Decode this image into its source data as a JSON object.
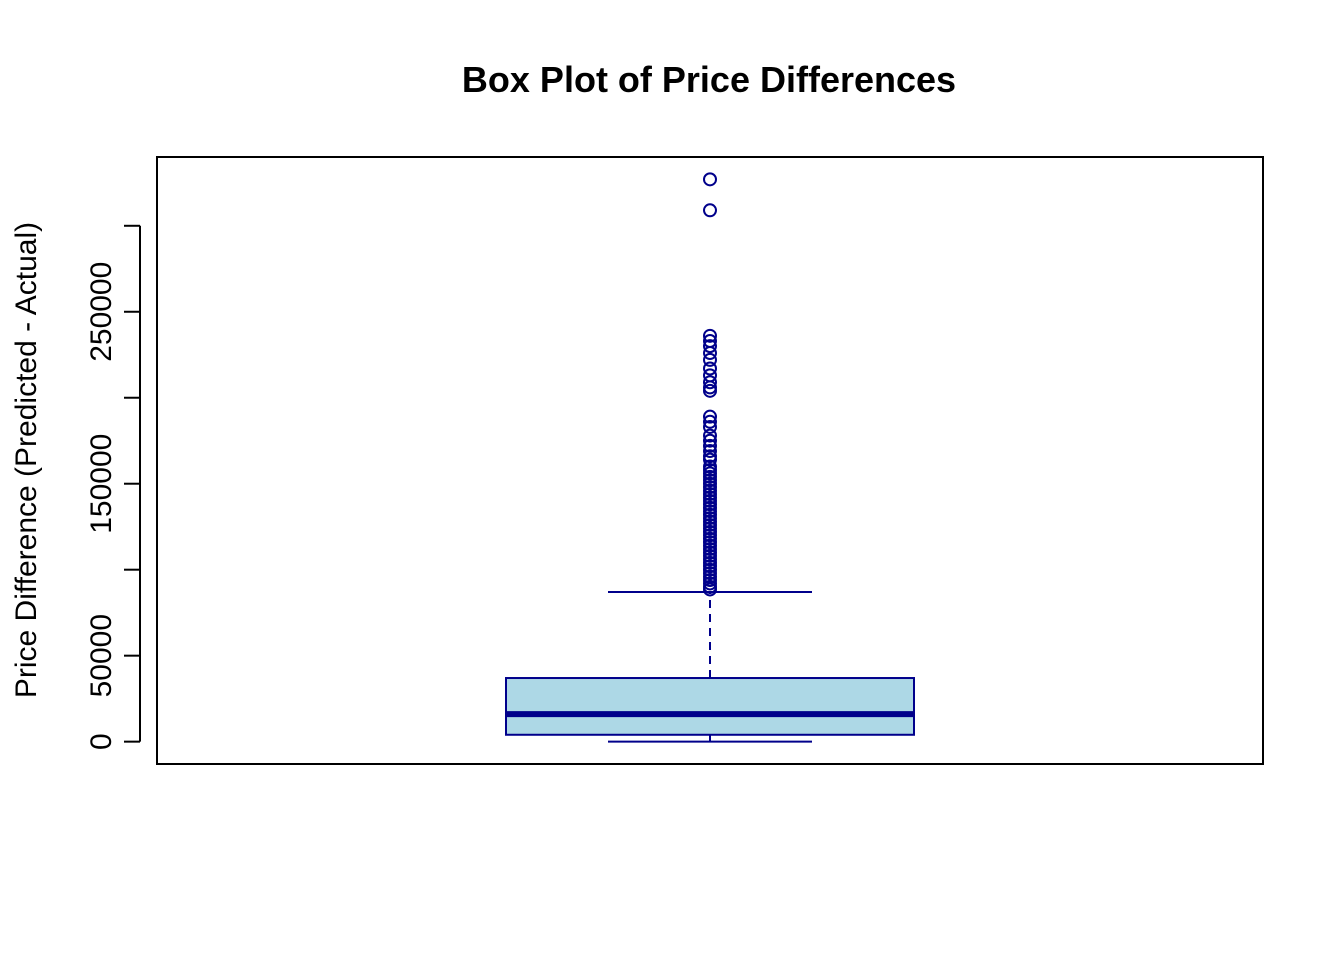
{
  "chart_data": {
    "type": "box",
    "title": "Box Plot of Price Differences",
    "xlabel": "",
    "ylabel": "Price Difference (Predicted - Actual)",
    "ylim": [
      -13000,
      340000
    ],
    "yticks": [
      0,
      50000,
      100000,
      150000,
      200000,
      250000,
      300000
    ],
    "ytick_labels": [
      "0",
      "50000",
      "",
      "150000",
      "",
      "250000",
      ""
    ],
    "box": {
      "whisker_low": 0,
      "q1": 4000,
      "median": 16000,
      "q3": 37000,
      "whisker_high": 87000
    },
    "outliers": [
      327000,
      309000,
      236000,
      233000,
      230000,
      226000,
      222000,
      217000,
      213000,
      209000,
      206000,
      204000,
      189000,
      186000,
      183000,
      178000,
      175000,
      172000,
      169000,
      166000,
      164000,
      160000,
      158000,
      156000,
      154000,
      152000,
      150000,
      148000,
      146000,
      144000,
      142000,
      140000,
      138000,
      136000,
      134000,
      132000,
      130000,
      128000,
      126000,
      124000,
      122000,
      120000,
      118000,
      116000,
      114000,
      112000,
      110000,
      108000,
      106000,
      104000,
      102000,
      100000,
      98000,
      96000,
      94000,
      92000,
      90000,
      88500
    ],
    "colors": {
      "box_fill": "#add8e6",
      "box_border": "#00008b",
      "axis": "#000000"
    },
    "grid": false,
    "legend": "none"
  }
}
